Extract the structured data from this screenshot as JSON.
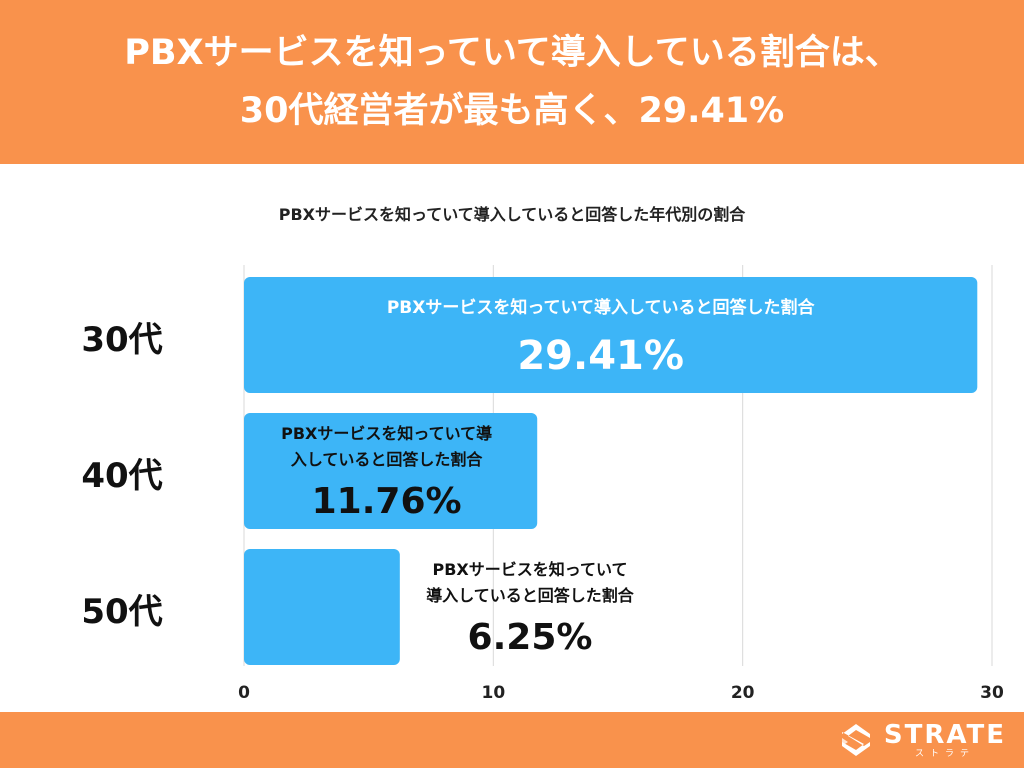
{
  "header": {
    "title_line1": "PBXサービスを知っていて導入している割合は、",
    "title_line2": "30代経営者が最も高く、29.41%"
  },
  "chart_data": {
    "type": "bar",
    "orientation": "horizontal",
    "title": "PBXサービスを知っていて導入していると回答した年代別の割合",
    "categories": [
      "30代",
      "40代",
      "50代"
    ],
    "series": [
      {
        "name": "PBXサービスを知っていて導入していると回答した割合",
        "values": [
          29.41,
          11.76,
          6.25
        ],
        "labels": [
          "29.41%",
          "11.76%",
          "6.25%"
        ]
      }
    ],
    "xlim": [
      0,
      30
    ],
    "xticks": [
      0,
      10,
      20,
      30
    ],
    "grid": true,
    "bar_color": "#3db5f7"
  },
  "colors": {
    "accent": "#f9924c",
    "bar": "#3db5f7"
  },
  "footer": {
    "logo_text": "STRATE",
    "logo_sub": "ストラテ"
  }
}
